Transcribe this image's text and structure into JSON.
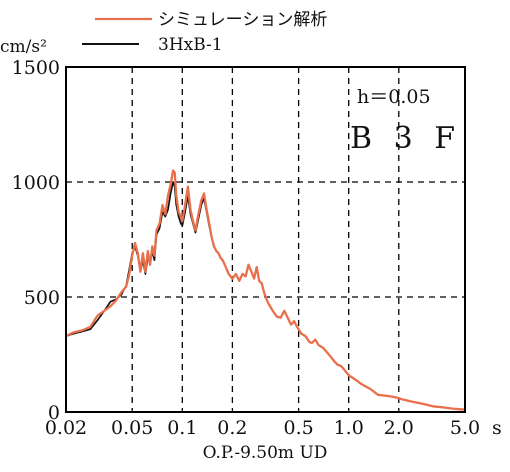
{
  "chart_data": {
    "type": "line",
    "y_unit": "cm/s²",
    "xlabel": "O.P.-9.50m UD",
    "x_unit": "s",
    "x_scale": "log",
    "xlim": [
      0.02,
      5.0
    ],
    "ylim": [
      0,
      1500
    ],
    "x_ticks": [
      0.02,
      0.05,
      0.1,
      0.2,
      0.5,
      1.0,
      2.0,
      5.0
    ],
    "x_tick_labels": [
      "0.02",
      "0.05",
      "0.1",
      "0.2",
      "0.5",
      "1.0",
      "2.0",
      "5.0"
    ],
    "y_ticks": [
      0,
      500,
      1000,
      1500
    ],
    "y_tick_labels": [
      "0",
      "500",
      "1000",
      "1500"
    ],
    "grid": true,
    "legend_position": "top-center",
    "annotations": [
      "h＝0.05",
      "B 3 F"
    ],
    "series": [
      {
        "name": "シミュレーション解析",
        "color": "#e8704c",
        "x": [
          0.02,
          0.022,
          0.025,
          0.028,
          0.031,
          0.034,
          0.037,
          0.04,
          0.043,
          0.046,
          0.048,
          0.05,
          0.052,
          0.054,
          0.056,
          0.058,
          0.06,
          0.062,
          0.064,
          0.066,
          0.068,
          0.07,
          0.073,
          0.076,
          0.079,
          0.082,
          0.085,
          0.088,
          0.09,
          0.092,
          0.095,
          0.098,
          0.1,
          0.104,
          0.108,
          0.112,
          0.116,
          0.12,
          0.125,
          0.13,
          0.135,
          0.14,
          0.145,
          0.15,
          0.155,
          0.16,
          0.165,
          0.17,
          0.175,
          0.18,
          0.185,
          0.19,
          0.2,
          0.21,
          0.22,
          0.23,
          0.24,
          0.25,
          0.26,
          0.27,
          0.28,
          0.29,
          0.3,
          0.31,
          0.32,
          0.33,
          0.35,
          0.37,
          0.39,
          0.41,
          0.43,
          0.45,
          0.47,
          0.49,
          0.52,
          0.55,
          0.58,
          0.6,
          0.63,
          0.66,
          0.7,
          0.74,
          0.78,
          0.82,
          0.86,
          0.9,
          0.95,
          1.0,
          1.1,
          1.2,
          1.35,
          1.5,
          1.7,
          1.9,
          2.1,
          2.4,
          2.8,
          3.2,
          3.7,
          4.2,
          4.6,
          5.0
        ],
        "y": [
          330,
          345,
          355,
          370,
          420,
          440,
          460,
          485,
          520,
          545,
          600,
          680,
          735,
          690,
          610,
          690,
          610,
          700,
          640,
          720,
          680,
          790,
          820,
          900,
          860,
          940,
          990,
          1050,
          1040,
          940,
          870,
          850,
          830,
          900,
          980,
          880,
          830,
          790,
          860,
          920,
          950,
          880,
          820,
          760,
          720,
          700,
          690,
          670,
          660,
          640,
          620,
          600,
          580,
          600,
          570,
          600,
          590,
          640,
          610,
          580,
          630,
          570,
          560,
          520,
          490,
          470,
          440,
          415,
          410,
          440,
          410,
          380,
          395,
          370,
          340,
          330,
          305,
          300,
          315,
          290,
          280,
          260,
          240,
          220,
          205,
          200,
          180,
          160,
          140,
          120,
          100,
          75,
          70,
          65,
          55,
          45,
          35,
          25,
          20,
          15,
          12,
          10
        ]
      },
      {
        "name": "3HxB-1",
        "color": "#111111",
        "x": [
          0.02,
          0.022,
          0.025,
          0.028,
          0.031,
          0.034,
          0.037,
          0.04,
          0.043,
          0.046,
          0.048,
          0.05,
          0.052,
          0.054,
          0.056,
          0.058,
          0.06,
          0.062,
          0.064,
          0.066,
          0.068,
          0.07,
          0.073,
          0.076,
          0.079,
          0.082,
          0.085,
          0.088,
          0.09,
          0.092,
          0.095,
          0.098,
          0.1,
          0.104,
          0.108,
          0.112,
          0.116,
          0.12,
          0.125,
          0.13,
          0.135,
          0.14,
          0.145,
          0.15,
          0.155,
          0.16,
          0.165,
          0.17,
          0.175,
          0.18,
          0.185,
          0.19,
          0.2
        ],
        "y": [
          330,
          340,
          350,
          360,
          400,
          440,
          480,
          490,
          510,
          550,
          620,
          690,
          720,
          680,
          610,
          660,
          600,
          670,
          650,
          700,
          660,
          770,
          800,
          870,
          850,
          880,
          950,
          1000,
          980,
          900,
          850,
          820,
          810,
          870,
          940,
          860,
          820,
          780,
          840,
          900,
          930,
          870,
          810,
          760,
          720,
          700,
          690,
          670,
          660,
          640,
          620,
          600,
          580
        ]
      }
    ]
  }
}
